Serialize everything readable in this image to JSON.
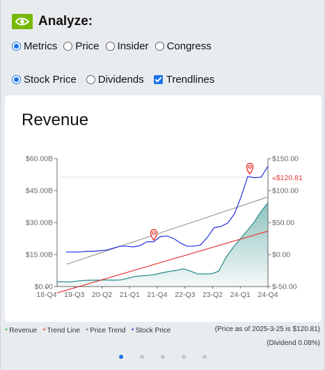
{
  "header": {
    "title": "Analyze:",
    "logo_icon": "nvidia-logo-icon",
    "logo_color": "#76b900"
  },
  "view_tabs": [
    {
      "label": "Metrics",
      "selected": true
    },
    {
      "label": "Price",
      "selected": false
    },
    {
      "label": "Insider",
      "selected": false
    },
    {
      "label": "Congress",
      "selected": false
    }
  ],
  "options": {
    "stock_price": {
      "label": "Stock Price",
      "selected": true
    },
    "dividends": {
      "label": "Dividends",
      "selected": false
    },
    "trendlines": {
      "label": "Trendlines",
      "checked": true
    }
  },
  "chart": {
    "title": "Revenue",
    "price_marker": "«$120.81"
  },
  "chart_data": {
    "type": "line",
    "title": "Revenue",
    "x_tick_labels": [
      "18-Q4",
      "19-Q3",
      "20-Q2",
      "21-Q1",
      "21-Q4",
      "22-Q3",
      "23-Q2",
      "24-Q1",
      "24-Q4"
    ],
    "left_axis": {
      "ticks": [
        "$0.00",
        "$15.00B",
        "$30.00B",
        "$45.00B",
        "$60.00B"
      ],
      "ylim": [
        0,
        60
      ]
    },
    "right_axis": {
      "ticks": [
        "$-50.00",
        "$0.00",
        "$50.00",
        "$100.00",
        "$150.00"
      ],
      "ylim": [
        -50,
        150
      ]
    },
    "grid": false,
    "series": [
      {
        "name": "Revenue",
        "axis": "left",
        "color": "#2f8f8a",
        "values": [
          2.2,
          2.2,
          2.2,
          2.6,
          2.9,
          3.0,
          3.0,
          3.1,
          3.0,
          3.1,
          3.8,
          4.7,
          5.0,
          5.3,
          5.7,
          6.5,
          7.1,
          7.6,
          8.3,
          7.2,
          5.9,
          5.9,
          6.0,
          7.2,
          13.5,
          18.1,
          22.1,
          26.0,
          30.0,
          35.1,
          39.3
        ]
      },
      {
        "name": "Trend Line",
        "axis": "left",
        "color": "#e53935",
        "values": [
          -3.0,
          26.0
        ]
      },
      {
        "name": "Price Trend",
        "axis": "right",
        "color": "#888888",
        "values": [
          -15.0,
          90.0
        ]
      },
      {
        "name": "Stock Price",
        "axis": "right",
        "color": "#1f2de0",
        "values": [
          4.0,
          4.0,
          4.0,
          5.0,
          5.0,
          6.0,
          7.0,
          10.0,
          13.0,
          13.0,
          12.0,
          14.0,
          20.0,
          20.0,
          28.0,
          29.0,
          25.0,
          18.0,
          13.0,
          13.0,
          15.0,
          27.0,
          42.0,
          44.0,
          49.0,
          63.0,
          90.0,
          122.0,
          120.0,
          121.0,
          138.0
        ]
      }
    ],
    "x_range_labels": [
      "18-Q4",
      "24-Q4"
    ],
    "current_price": "«$120.81",
    "marker_icons": [
      "map-pin-icon",
      "map-pin-icon"
    ]
  },
  "legend": [
    {
      "label": "Revenue",
      "color": "#22c55e"
    },
    {
      "label": "Trend Line",
      "color": "#e53935"
    },
    {
      "label": "Price Trend",
      "color": "#777777"
    },
    {
      "label": "Stock Price",
      "color": "#1f2de0"
    }
  ],
  "notes": {
    "price_as_of": "(Price as of 2025-3-25 is $120.81)",
    "dividend": "(Dividend 0.08%)"
  },
  "pagination": {
    "count": 5,
    "active": 0
  }
}
